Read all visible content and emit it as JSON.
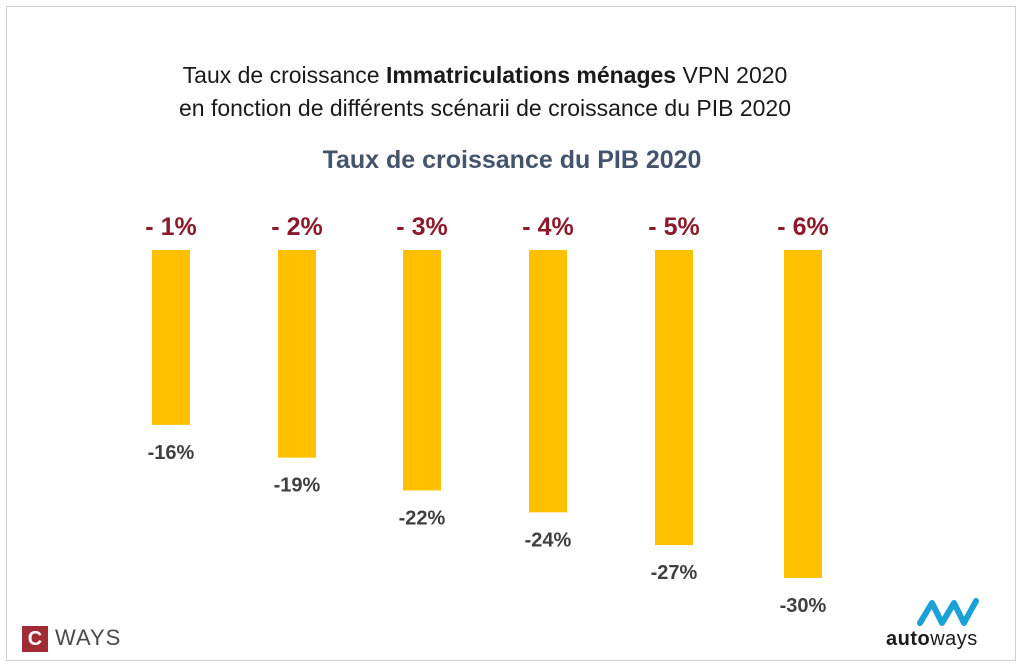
{
  "header": {
    "title_part1": "Taux de croissance ",
    "title_bold": "Immatriculations ménages",
    "title_part2": " VPN 2020",
    "title_line2": "en fonction de différents scénarii de croissance du PIB 2020"
  },
  "chart_data": {
    "type": "bar",
    "title": "Taux de croissance Immatriculations ménages VPN 2020",
    "subtitle": "Taux de croissance du PIB 2020",
    "categories": [
      "- 1%",
      "- 2%",
      "- 3%",
      "- 4%",
      "- 5%",
      "- 6%"
    ],
    "values": [
      -16,
      -19,
      -22,
      -24,
      -27,
      -30
    ],
    "value_labels": [
      "-16%",
      "-19%",
      "-22%",
      "-24%",
      "-27%",
      "-30%"
    ],
    "ylim": [
      -30,
      0
    ],
    "bar_color": "#ffc000",
    "category_color": "#8b1a2b",
    "label_color": "#3f3f3f",
    "grid": false,
    "legend": "none"
  },
  "logos": {
    "cways_c": "C",
    "cways_text": "WAYS",
    "autoways_bold": "auto",
    "autoways_text": "ways"
  }
}
